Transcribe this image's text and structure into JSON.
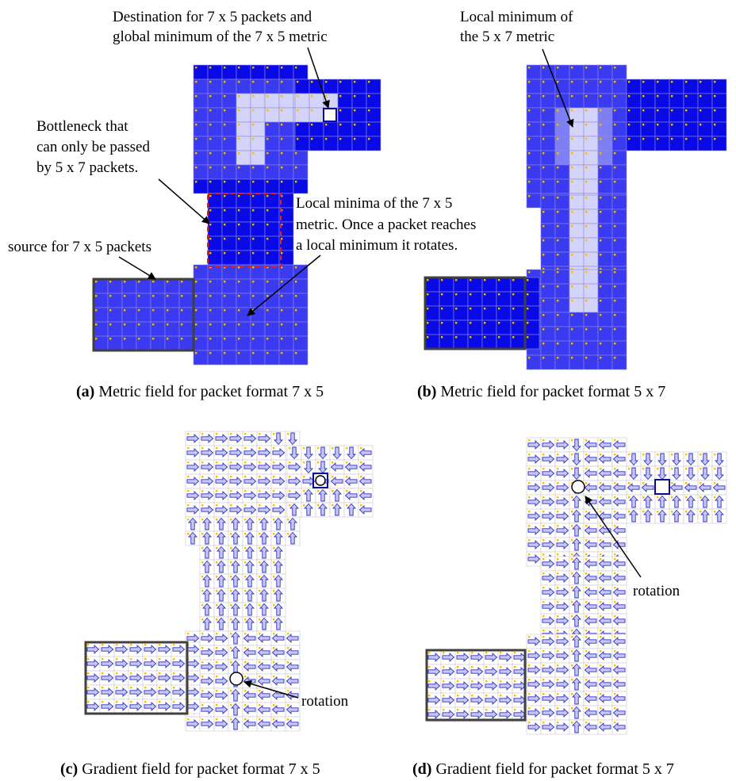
{
  "colors": {
    "dark": "#0a0ae6",
    "mid": "#3a3af0",
    "light": "#7f7ff5",
    "pale": "#d4d4fa",
    "cell_line": "#8a8ae0",
    "dot": "#f0c000",
    "source_frame": "#404040",
    "bottleneck_frame": "#e02020",
    "arrow_fill": "#c8c8f8",
    "arrow_stroke": "#3030c0"
  },
  "panel_a": {
    "note_destination": [
      "Destination for 7 x 5 packets and",
      "global minimum of the 7 x 5 metric"
    ],
    "note_bottleneck": [
      "Bottleneck that",
      "can only be passed",
      "by 5 x 7 packets."
    ],
    "note_source": "source for 7 x 5 packets",
    "note_local_minima": [
      "Local minima of the 7 x 5",
      "metric. Once a packet reaches",
      "a local minimum it rotates."
    ],
    "caption_label": "(a)",
    "caption_text": " Metric field for packet format 7 x 5"
  },
  "panel_b": {
    "note_local_minimum": [
      "Local minimum of",
      "the 5 x 7 metric"
    ],
    "caption_label": "(b)",
    "caption_text": " Metric field for packet format 5 x 7"
  },
  "panel_c": {
    "note_rotation": "rotation",
    "caption_label": "(c)",
    "caption_text": " Gradient field for packet format 7 x 5"
  },
  "panel_d": {
    "note_rotation": "rotation",
    "caption_label": "(d)",
    "caption_text": " Gradient field for packet format 5 x 7"
  }
}
